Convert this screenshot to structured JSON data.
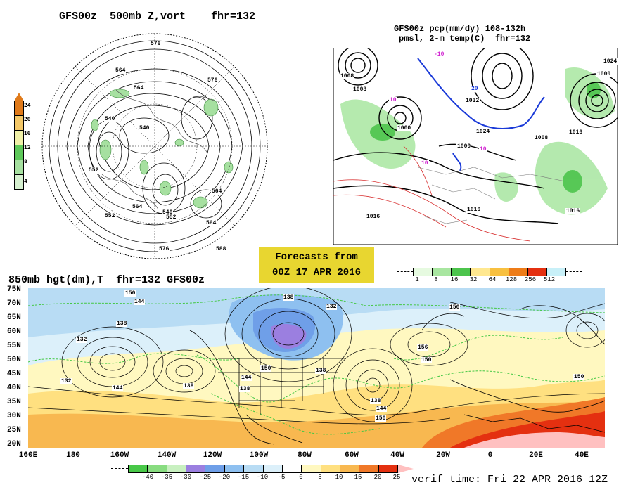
{
  "titles": {
    "polar": "GFS00z  500mb Z,vort    fhr=132",
    "precip_line1": "GFS00z pcp(mm/dy) 108-132h",
    "precip_line2": "pmsl, 2-m temp(C)  fhr=132",
    "main": "850mb hgt(dm),T  fhr=132 GFS00z"
  },
  "banner": {
    "line1": "Forecasts from",
    "line2": "00Z 17 APR 2016"
  },
  "verif": "verif time: Fri 22 APR 2016 12Z",
  "polar_colorbar": {
    "labels": [
      "24",
      "20",
      "16",
      "12",
      "8",
      "4"
    ],
    "colors": [
      "#e07a1a",
      "#f4c868",
      "#f0f0a8",
      "#5ec85a",
      "#a6e0a0",
      "#d6f0d0"
    ]
  },
  "precip_colorbar": {
    "labels": [
      "1",
      "8",
      "16",
      "32",
      "64",
      "128",
      "256",
      "512"
    ],
    "colors": [
      "#e6fae0",
      "#a8e6a0",
      "#4cc44c",
      "#ffe890",
      "#f8c040",
      "#ee7c18",
      "#e43010",
      "#c8f0f8"
    ]
  },
  "temp_colorbar": {
    "labels": [
      "-40",
      "-35",
      "-30",
      "-25",
      "-20",
      "-15",
      "-10",
      "-5",
      "0",
      "5",
      "10",
      "15",
      "20",
      "25"
    ],
    "colors": [
      "#48c848",
      "#88dc80",
      "#c8f0c0",
      "#9b7fe0",
      "#6f9fe8",
      "#8ec0f0",
      "#b8dcf4",
      "#dcf0fa",
      "#ffffff",
      "#fff8c0",
      "#ffe080",
      "#f8b850",
      "#f07828",
      "#e43010",
      "#ffc0c0"
    ]
  },
  "lat_labels": [
    "75N",
    "70N",
    "65N",
    "60N",
    "55N",
    "50N",
    "45N",
    "40N",
    "35N",
    "30N",
    "25N",
    "20N"
  ],
  "lon_labels": [
    "160E",
    "180",
    "160W",
    "140W",
    "120W",
    "100W",
    "80W",
    "60W",
    "40W",
    "20W",
    "0",
    "20E",
    "40E"
  ],
  "polar_contour_labels": [
    "576",
    "564",
    "540",
    "540",
    "552",
    "564",
    "576",
    "588",
    "564",
    "540",
    "552",
    "564",
    "576",
    "552",
    "564"
  ],
  "precip_contour_labels": [
    "1008",
    "1000",
    "1008",
    "1000",
    "1032",
    "1024",
    "1016",
    "1016",
    "1000",
    "1008",
    "1024",
    "1016",
    "1016",
    "-10",
    "10",
    "10",
    "10",
    "20"
  ],
  "main_contour_labels": [
    "150",
    "144",
    "138",
    "132",
    "132",
    "138",
    "138",
    "132",
    "150",
    "156",
    "150",
    "144",
    "138",
    "144",
    "150",
    "138",
    "144",
    "150",
    "138",
    "150"
  ]
}
